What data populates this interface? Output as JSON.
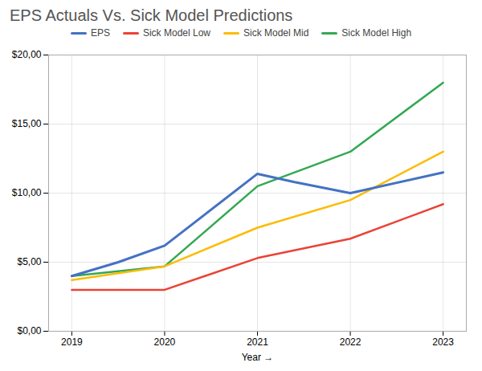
{
  "chart_data": {
    "type": "line",
    "title": "EPS Actuals Vs. Sick Model Predictions",
    "xlabel": "Year",
    "series": [
      {
        "name": "EPS",
        "color": "#4472C4",
        "x": [
          2019,
          2019.5,
          2020,
          2021,
          2021.4,
          2022,
          2023
        ],
        "values": [
          4.0,
          5.0,
          6.2,
          11.4,
          10.8,
          10.0,
          11.5
        ]
      },
      {
        "name": "Sick Model Low",
        "color": "#EA4335",
        "x": [
          2019,
          2020,
          2021,
          2022,
          2023
        ],
        "values": [
          3.0,
          3.0,
          5.3,
          6.7,
          9.2
        ]
      },
      {
        "name": "Sick Model Mid",
        "color": "#FBBC04",
        "x": [
          2019,
          2020,
          2021,
          2022,
          2023
        ],
        "values": [
          3.7,
          4.7,
          7.5,
          9.5,
          13.0
        ]
      },
      {
        "name": "Sick Model High",
        "color": "#34A853",
        "x": [
          2019,
          2020,
          2021,
          2022,
          2023
        ],
        "values": [
          4.0,
          4.7,
          10.5,
          13.0,
          18.0
        ]
      }
    ],
    "xlim": [
      2018.75,
      2023.25
    ],
    "xticks": [
      2019,
      2020,
      2021,
      2022,
      2023
    ],
    "ylim": [
      0,
      20
    ],
    "yticks": [
      {
        "value": 0,
        "label": "$0,00"
      },
      {
        "value": 5,
        "label": "$5,00"
      },
      {
        "value": 10,
        "label": "$10,00"
      },
      {
        "value": 15,
        "label": "$15,00"
      },
      {
        "value": 20,
        "label": "$20,00"
      }
    ],
    "grid": true,
    "legend": "top"
  }
}
